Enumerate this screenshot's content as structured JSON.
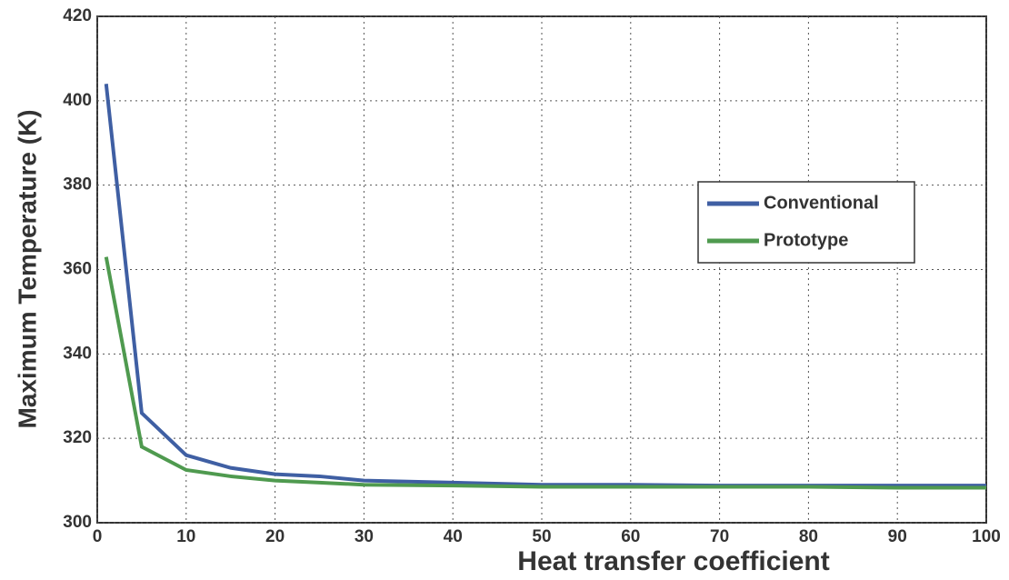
{
  "chart_data": {
    "type": "line",
    "xlabel": "Heat transfer coefficient",
    "ylabel": "Maximum Temperature  (K)",
    "x": [
      1,
      5,
      10,
      15,
      20,
      25,
      30,
      40,
      50,
      60,
      70,
      80,
      90,
      100
    ],
    "series": [
      {
        "name": "Conventional",
        "color": "#3f5fa3",
        "values": [
          404,
          326,
          316,
          313,
          311.5,
          311,
          310,
          309.5,
          309,
          309,
          308.8,
          308.8,
          308.8,
          308.8
        ]
      },
      {
        "name": "Prototype",
        "color": "#4f9a4f",
        "values": [
          363,
          318,
          312.5,
          311,
          310,
          309.5,
          309,
          308.8,
          308.5,
          308.5,
          308.5,
          308.5,
          308.3,
          308.3
        ]
      }
    ],
    "xlim": [
      0,
      100
    ],
    "xticks": [
      0,
      10,
      20,
      30,
      40,
      50,
      60,
      70,
      80,
      90,
      100
    ],
    "ylim": [
      300,
      420
    ],
    "yticks": [
      300,
      320,
      340,
      360,
      380,
      400,
      420
    ],
    "grid": true,
    "legend": "right"
  }
}
